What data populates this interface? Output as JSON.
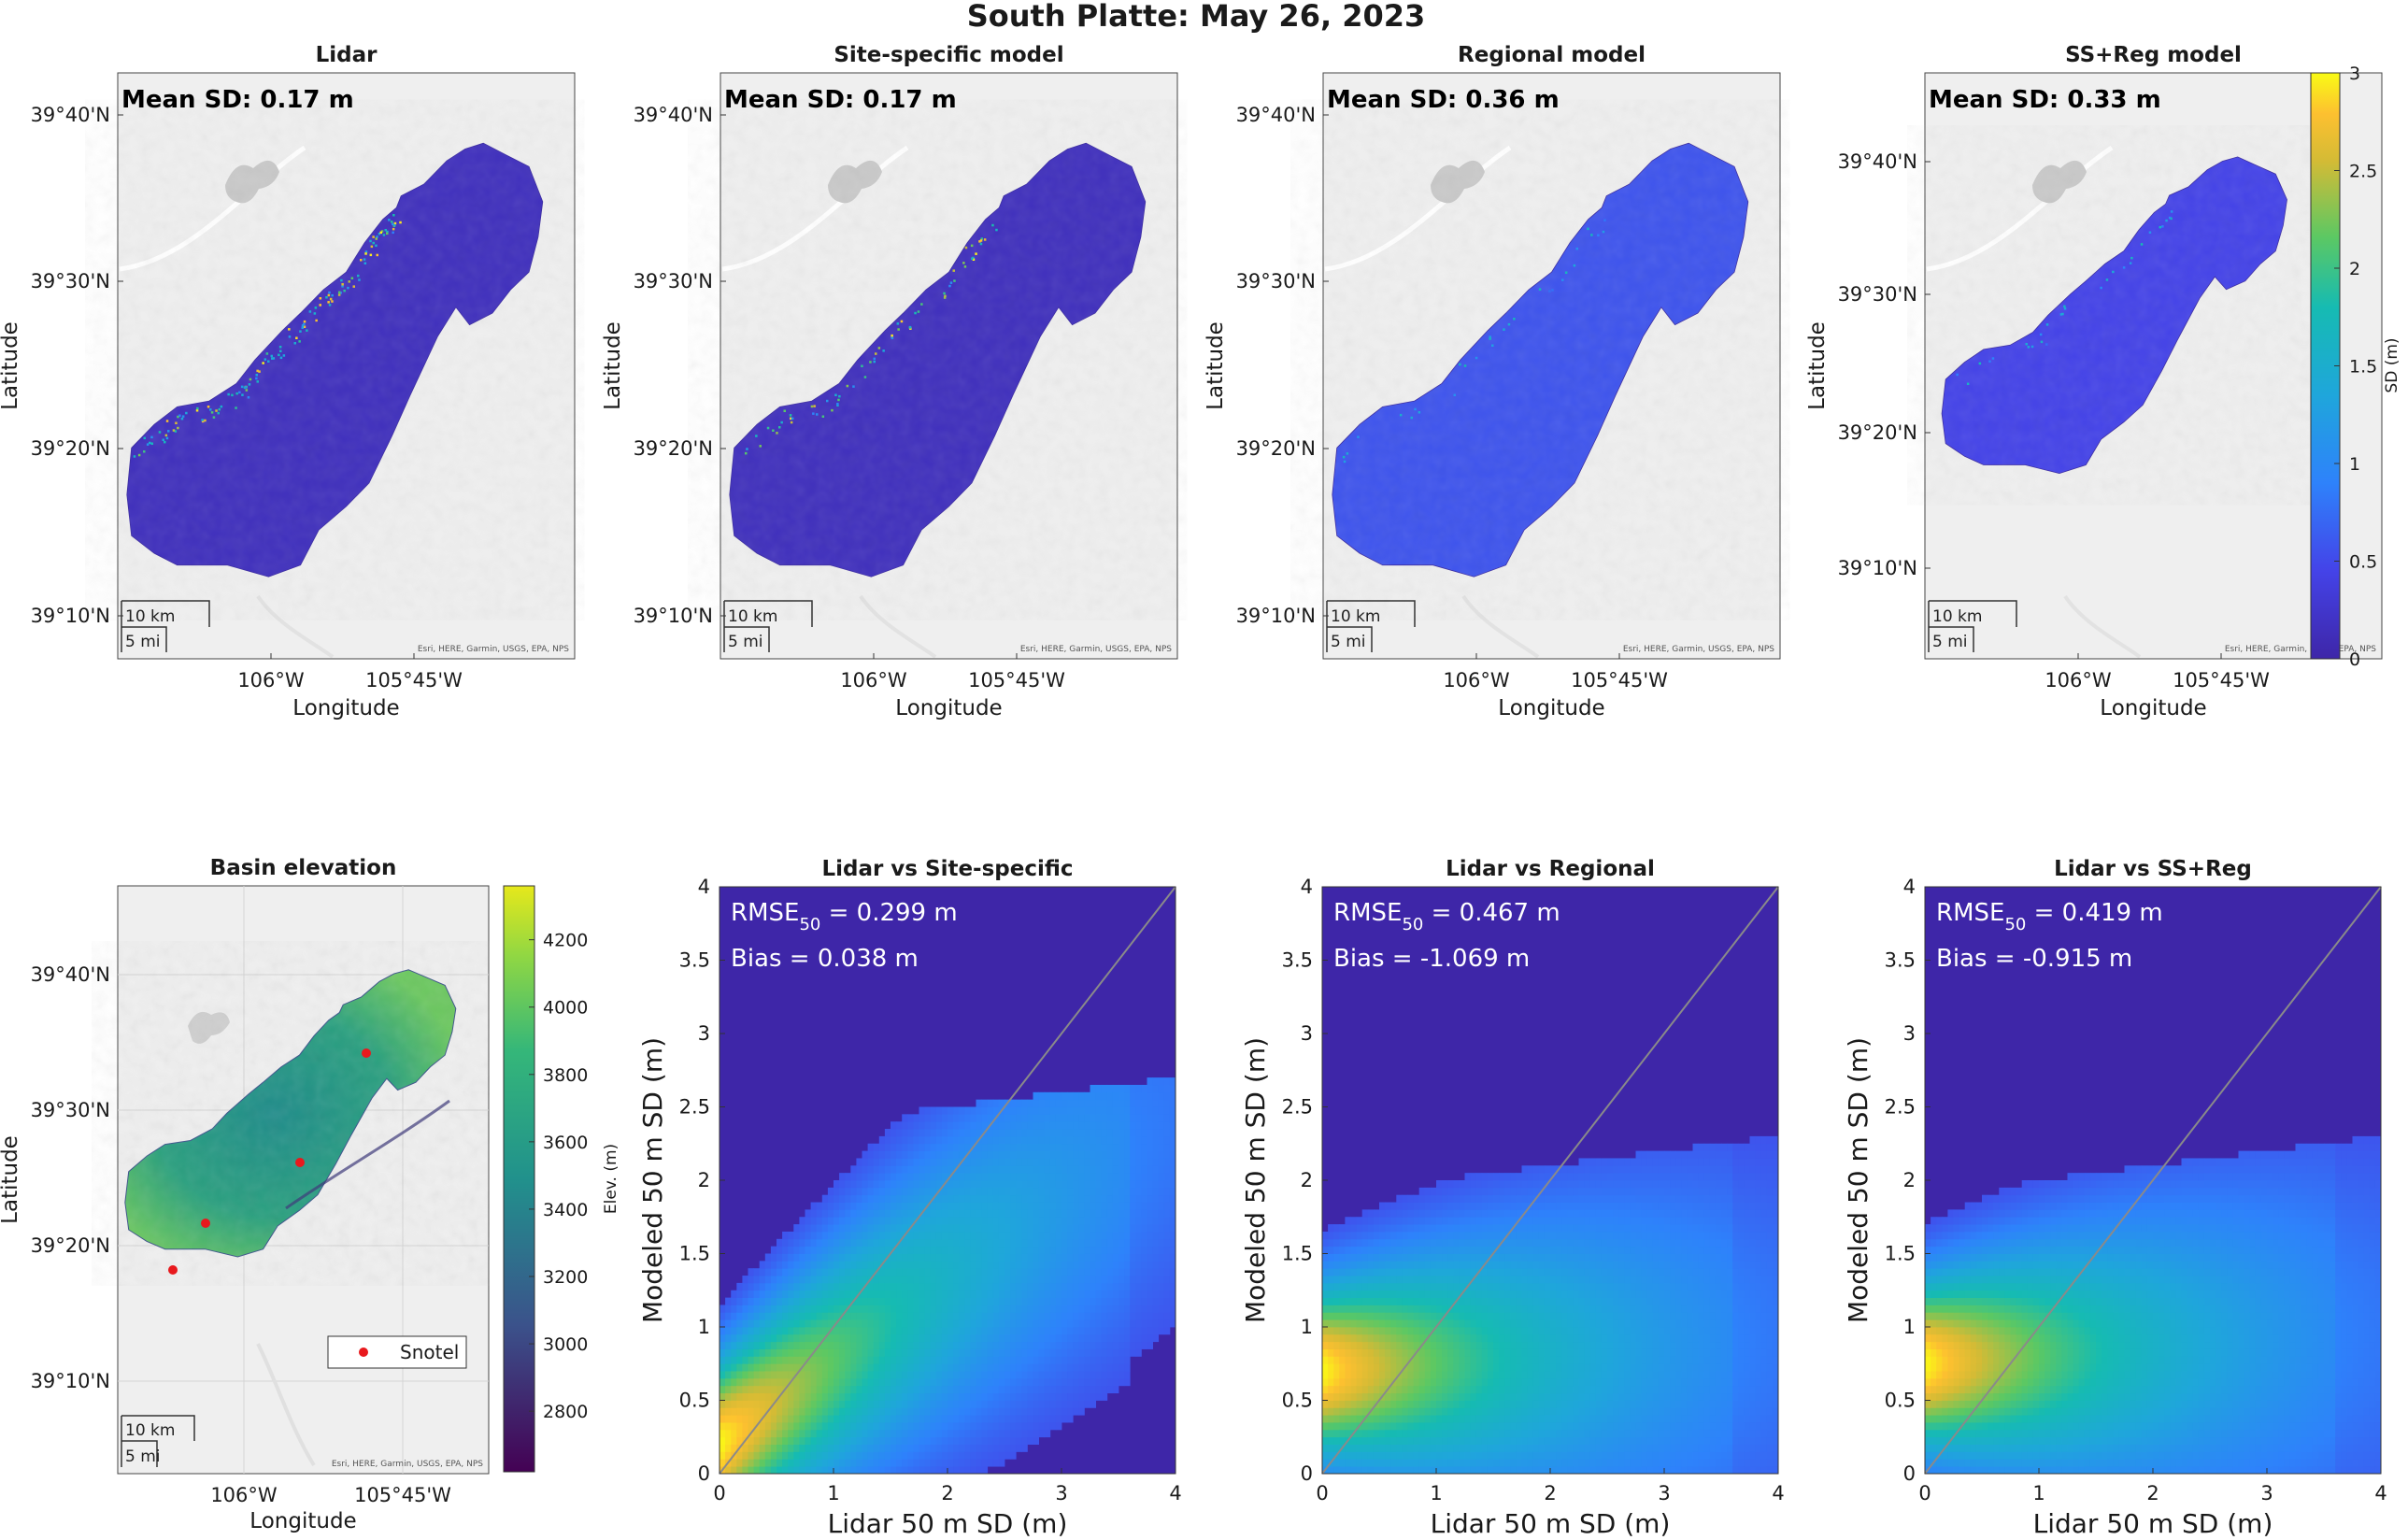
{
  "figure_title": "South Platte: May 26, 2023",
  "colors": {
    "parula_low": "#3e26a8",
    "parula_high": "#f9fb15",
    "map_bg": "#efefef",
    "snotel": "#e8191d",
    "one_to_one": "#8a8a8a"
  },
  "maps": [
    {
      "title": "Lidar",
      "mean_label": "Mean SD: 0.17 m",
      "fill_shift": 0.0
    },
    {
      "title": "Site-specific model",
      "mean_label": "Mean SD: 0.17 m",
      "fill_shift": 0.0
    },
    {
      "title": "Regional model",
      "mean_label": "Mean SD: 0.36 m",
      "fill_shift": 0.14
    },
    {
      "title": "SS+Reg model",
      "mean_label": "Mean SD: 0.33 m",
      "fill_shift": 0.1
    }
  ],
  "map_axes": {
    "xlabel": "Longitude",
    "ylabel": "Latitude",
    "xticks": [
      "106°W",
      "105°45'W"
    ],
    "yticks": [
      "39°40'N",
      "39°30'N",
      "39°20'N",
      "39°10'N"
    ],
    "yticks_ssreg": [
      "39°40'N",
      "39°30'N",
      "39°20'N",
      "39°10'N"
    ],
    "scalebar_km": "10 km",
    "scalebar_mi": "5 mi",
    "attribution": "Esri, HERE, Garmin, USGS, EPA, NPS"
  },
  "sd_colorbar": {
    "label": "SD (m)",
    "ticks": [
      "0",
      "0.5",
      "1",
      "1.5",
      "2",
      "2.5",
      "3"
    ],
    "min": 0,
    "max": 3
  },
  "elevation": {
    "title": "Basin elevation",
    "colorbar_label": "Elev. (m)",
    "ticks": [
      "2800",
      "3000",
      "3200",
      "3400",
      "3600",
      "3800",
      "4000",
      "4200"
    ],
    "legend_label": "Snotel",
    "xlabel": "Longitude",
    "ylabel": "Latitude",
    "xticks": [
      "106°W",
      "105°45'W"
    ],
    "yticks": [
      "39°40'N",
      "39°30'N",
      "39°20'N",
      "39°10'N"
    ],
    "scalebar_km": "10 km",
    "scalebar_mi": "5 mi",
    "attribution": "Esri, HERE, Garmin, USGS, EPA, NPS"
  },
  "chart_data": [
    {
      "type": "heatmap",
      "title": "Lidar vs Site-specific",
      "xlabel": "Lidar 50 m SD (m)",
      "ylabel": "Modeled 50 m SD (m)",
      "xlim": [
        0,
        4
      ],
      "ylim": [
        0,
        4
      ],
      "xticks": [
        "0",
        "1",
        "2",
        "3",
        "4"
      ],
      "yticks": [
        "0",
        "0.5",
        "1",
        "1.5",
        "2",
        "2.5",
        "3",
        "3.5",
        "4"
      ],
      "rmse_label": "RMSE",
      "rmse_sub": "50",
      "rmse_value": " = 0.299 m",
      "bias_label": "Bias = 0.038 m",
      "one_to_one_line": true
    },
    {
      "type": "heatmap",
      "title": "Lidar vs Regional",
      "xlabel": "Lidar 50 m SD (m)",
      "ylabel": "Modeled 50 m SD (m)",
      "xlim": [
        0,
        4
      ],
      "ylim": [
        0,
        4
      ],
      "xticks": [
        "0",
        "1",
        "2",
        "3",
        "4"
      ],
      "yticks": [
        "0",
        "0.5",
        "1",
        "1.5",
        "2",
        "2.5",
        "3",
        "3.5",
        "4"
      ],
      "rmse_label": "RMSE",
      "rmse_sub": "50",
      "rmse_value": " = 0.467 m",
      "bias_label": "Bias = -1.069 m",
      "one_to_one_line": true
    },
    {
      "type": "heatmap",
      "title": "Lidar vs SS+Reg",
      "xlabel": "Lidar 50 m SD (m)",
      "ylabel": "Modeled 50 m SD (m)",
      "xlim": [
        0,
        4
      ],
      "ylim": [
        0,
        4
      ],
      "xticks": [
        "0",
        "1",
        "2",
        "3",
        "4"
      ],
      "yticks": [
        "0",
        "0.5",
        "1",
        "1.5",
        "2",
        "2.5",
        "3",
        "3.5",
        "4"
      ],
      "rmse_label": "RMSE",
      "rmse_sub": "50",
      "rmse_value": " = 0.419 m",
      "bias_label": "Bias = -0.915 m",
      "one_to_one_line": true
    }
  ]
}
